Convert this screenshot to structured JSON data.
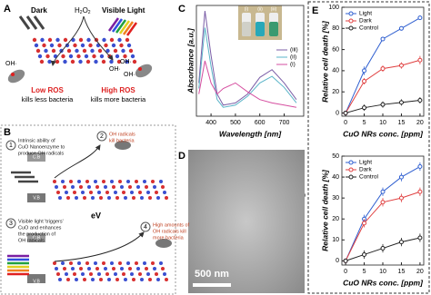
{
  "panel_labels": [
    "A",
    "B",
    "C",
    "D",
    "E"
  ],
  "panel_a": {
    "dark": "Dark",
    "h2o2": [
      "H",
      "2",
      "O",
      "2"
    ],
    "visible_light": "Visible Light",
    "oh": "OH·",
    "low_ros": "Low ROS",
    "low_ros_effect": "kills less bacteria",
    "high_ros": "High ROS",
    "high_ros_effect": "kills more bacteria"
  },
  "panel_b": {
    "steps": [
      {
        "number": "1",
        "text": [
          "Intrinsic ability of",
          "CuO Nanoenzyme to",
          "produce OH radicals"
        ]
      },
      {
        "number": "2",
        "text": [
          "OH radicals",
          "kill bacteria"
        ]
      },
      {
        "number": "3",
        "text": [
          "Visible light 'triggers'",
          "CuO and enhances",
          "the production of",
          "OH radicals"
        ]
      },
      {
        "number": "4",
        "text": [
          "High amounts of",
          "OH radicals kill",
          "more bacteria"
        ]
      }
    ],
    "ev": "eV",
    "cb": "C.B",
    "vb": "V.B"
  },
  "panel_d": {
    "scale_bar": "500 nm"
  },
  "chart_data": [
    {
      "type": "line",
      "xlabel": "Wavelength [nm]",
      "ylabel": "Absorbance [a.u.]",
      "x": [
        350,
        375,
        400,
        425,
        450,
        500,
        550,
        600,
        650,
        700,
        750
      ],
      "xlim": [
        340,
        780
      ],
      "xticks": [
        400,
        500,
        600,
        700
      ],
      "ylim": [
        0,
        1
      ],
      "legend": "center right",
      "series": [
        {
          "name": "(iii)",
          "color": "#7b5ea7",
          "values": [
            0.3,
            0.95,
            0.55,
            0.2,
            0.1,
            0.12,
            0.2,
            0.35,
            0.42,
            0.3,
            0.15
          ]
        },
        {
          "name": "(ii)",
          "color": "#5ab4c8",
          "values": [
            0.25,
            0.8,
            0.45,
            0.15,
            0.08,
            0.1,
            0.18,
            0.3,
            0.36,
            0.26,
            0.12
          ]
        },
        {
          "name": "(i)",
          "color": "#d64fa0",
          "values": [
            0.2,
            0.5,
            0.3,
            0.2,
            0.25,
            0.3,
            0.22,
            0.15,
            0.12,
            0.1,
            0.08
          ]
        }
      ]
    },
    {
      "type": "line",
      "xlabel": "CuO NRs conc. [ppm]",
      "ylabel": "Relative cell death [%]",
      "x": [
        0,
        5,
        10,
        15,
        20
      ],
      "xlim": [
        -1,
        21
      ],
      "xticks": [
        0,
        5,
        10,
        15,
        20
      ],
      "ylim": [
        -3,
        100
      ],
      "yticks": [
        0,
        20,
        40,
        60,
        80,
        100
      ],
      "legend": "upper left",
      "markers": true,
      "series": [
        {
          "name": "Light",
          "color": "#2f5fd0",
          "values": [
            0,
            40,
            70,
            80,
            90
          ],
          "errors": [
            2,
            4,
            2,
            2,
            2
          ]
        },
        {
          "name": "Dark",
          "color": "#e04040",
          "values": [
            0,
            30,
            42,
            45,
            50
          ],
          "errors": [
            2,
            3,
            3,
            3,
            4
          ]
        },
        {
          "name": "Control",
          "color": "#222222",
          "values": [
            0,
            5,
            8,
            10,
            12
          ],
          "errors": [
            1,
            3,
            3,
            3,
            3
          ]
        }
      ]
    },
    {
      "type": "line",
      "xlabel": "CuO NRs conc. [ppm]",
      "ylabel": "Relative cell death [%]",
      "x": [
        0,
        5,
        10,
        15,
        20
      ],
      "xlim": [
        -1,
        21
      ],
      "xticks": [
        0,
        5,
        10,
        15,
        20
      ],
      "ylim": [
        -2,
        50
      ],
      "yticks": [
        0,
        10,
        20,
        30,
        40,
        50
      ],
      "legend": "upper left",
      "markers": true,
      "series": [
        {
          "name": "Light",
          "color": "#2f5fd0",
          "values": [
            0,
            20,
            33,
            40,
            45
          ],
          "errors": [
            1,
            2,
            2,
            2,
            2
          ]
        },
        {
          "name": "Dark",
          "color": "#e04040",
          "values": [
            0,
            18,
            28,
            30,
            33
          ],
          "errors": [
            1,
            2,
            2,
            2,
            2
          ]
        },
        {
          "name": "Control",
          "color": "#222222",
          "values": [
            0,
            3,
            6,
            9,
            11
          ],
          "errors": [
            1,
            2,
            2,
            2,
            2
          ]
        }
      ]
    }
  ]
}
